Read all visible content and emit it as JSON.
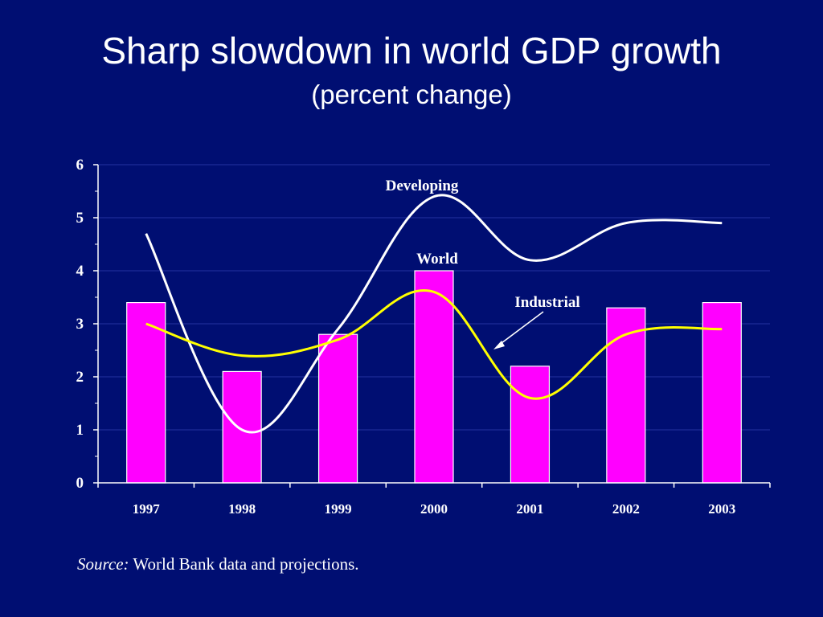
{
  "title": "Sharp slowdown in world GDP growth",
  "subtitle": "(percent change)",
  "source": {
    "label": "Source:",
    "text": "World Bank data and projections."
  },
  "colors": {
    "background": "#000e72",
    "bar": "#ff00ff",
    "developing": "#ffffff",
    "industrial": "#ffff00",
    "axis": "#ffffff",
    "grid": "#2433a0"
  },
  "chart_data": {
    "type": "bar",
    "categories": [
      "1997",
      "1998",
      "1999",
      "2000",
      "2001",
      "2002",
      "2003"
    ],
    "ylim": [
      0,
      6
    ],
    "yticks": [
      0,
      1,
      2,
      3,
      4,
      5,
      6
    ],
    "grid": true,
    "xlabel": "",
    "ylabel": "",
    "series": [
      {
        "name": "World",
        "kind": "bar",
        "values": [
          3.4,
          2.1,
          2.8,
          4.0,
          2.2,
          3.3,
          3.4
        ]
      },
      {
        "name": "Developing",
        "kind": "line",
        "values": [
          4.7,
          1.0,
          2.9,
          5.4,
          4.2,
          4.9,
          4.9
        ]
      },
      {
        "name": "Industrial",
        "kind": "line",
        "values": [
          3.0,
          2.4,
          2.7,
          3.6,
          1.6,
          2.8,
          2.9
        ]
      }
    ]
  }
}
